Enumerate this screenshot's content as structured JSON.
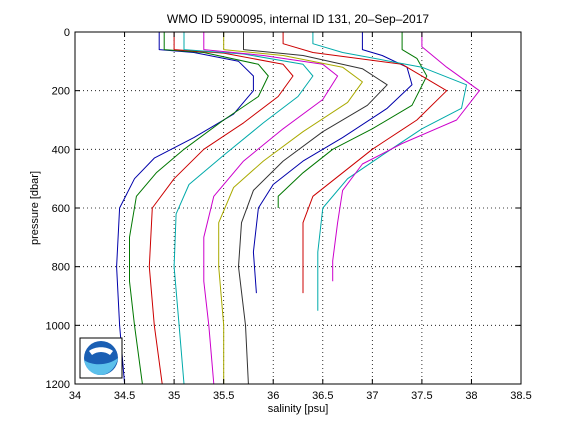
{
  "chart_data": {
    "type": "line",
    "title": "WMO ID 5900095, internal ID 131, 20–Sep–2017",
    "xlabel": "salinity [psu]",
    "ylabel": "pressure [dbar]",
    "xlim": [
      34,
      38.5
    ],
    "ylim": [
      0,
      1200
    ],
    "y_reversed": true,
    "grid": "dotted",
    "legend": "none",
    "x_ticks": [
      "34",
      "34.5",
      "35",
      "35.5",
      "36",
      "36.5",
      "37",
      "37.5",
      "38",
      "38.5"
    ],
    "y_ticks": [
      "0",
      "200",
      "400",
      "600",
      "800",
      "1000",
      "1200"
    ],
    "series": [
      {
        "color": "#0000aa",
        "points": [
          [
            34.85,
            0
          ],
          [
            34.85,
            60
          ],
          [
            35.2,
            70
          ],
          [
            35.65,
            100
          ],
          [
            35.8,
            150
          ],
          [
            35.8,
            200
          ],
          [
            35.6,
            280
          ],
          [
            35.2,
            360
          ],
          [
            34.8,
            430
          ],
          [
            34.6,
            500
          ],
          [
            34.45,
            600
          ],
          [
            34.42,
            800
          ],
          [
            34.45,
            1000
          ],
          [
            34.5,
            1200
          ]
        ]
      },
      {
        "color": "#007700",
        "points": [
          [
            34.9,
            0
          ],
          [
            34.9,
            60
          ],
          [
            35.3,
            70
          ],
          [
            35.85,
            110
          ],
          [
            35.95,
            150
          ],
          [
            35.85,
            220
          ],
          [
            35.5,
            300
          ],
          [
            35.1,
            400
          ],
          [
            34.82,
            480
          ],
          [
            34.62,
            560
          ],
          [
            34.55,
            700
          ],
          [
            34.55,
            850
          ],
          [
            34.6,
            1000
          ],
          [
            34.68,
            1200
          ]
        ]
      },
      {
        "color": "#cc0000",
        "points": [
          [
            35.0,
            0
          ],
          [
            35.0,
            60
          ],
          [
            35.5,
            72
          ],
          [
            36.1,
            110
          ],
          [
            36.2,
            150
          ],
          [
            36.05,
            220
          ],
          [
            35.7,
            310
          ],
          [
            35.3,
            400
          ],
          [
            35.0,
            500
          ],
          [
            34.78,
            600
          ],
          [
            34.75,
            800
          ],
          [
            34.8,
            1000
          ],
          [
            34.88,
            1200
          ]
        ]
      },
      {
        "color": "#00aaaa",
        "points": [
          [
            35.1,
            0
          ],
          [
            35.1,
            60
          ],
          [
            35.7,
            75
          ],
          [
            36.3,
            110
          ],
          [
            36.4,
            150
          ],
          [
            36.25,
            220
          ],
          [
            35.9,
            310
          ],
          [
            35.5,
            420
          ],
          [
            35.15,
            520
          ],
          [
            35.02,
            620
          ],
          [
            35.0,
            800
          ],
          [
            35.05,
            1000
          ],
          [
            35.1,
            1200
          ]
        ]
      },
      {
        "color": "#cc00cc",
        "points": [
          [
            35.3,
            0
          ],
          [
            35.3,
            60
          ],
          [
            35.9,
            80
          ],
          [
            36.5,
            110
          ],
          [
            36.65,
            150
          ],
          [
            36.5,
            230
          ],
          [
            36.1,
            330
          ],
          [
            35.7,
            440
          ],
          [
            35.4,
            560
          ],
          [
            35.3,
            700
          ],
          [
            35.3,
            850
          ],
          [
            35.35,
            1000
          ],
          [
            35.4,
            1200
          ]
        ]
      },
      {
        "color": "#aaaa00",
        "points": [
          [
            35.5,
            0
          ],
          [
            35.5,
            60
          ],
          [
            36.1,
            80
          ],
          [
            36.7,
            120
          ],
          [
            36.9,
            170
          ],
          [
            36.75,
            240
          ],
          [
            36.3,
            340
          ],
          [
            35.9,
            440
          ],
          [
            35.6,
            530
          ],
          [
            35.45,
            650
          ],
          [
            35.45,
            800
          ],
          [
            35.5,
            1000
          ],
          [
            35.5,
            1200
          ]
        ]
      },
      {
        "color": "#333333",
        "points": [
          [
            35.7,
            0
          ],
          [
            35.7,
            60
          ],
          [
            36.3,
            80
          ],
          [
            36.9,
            125
          ],
          [
            37.15,
            180
          ],
          [
            36.95,
            250
          ],
          [
            36.5,
            340
          ],
          [
            36.1,
            440
          ],
          [
            35.8,
            540
          ],
          [
            35.68,
            650
          ],
          [
            35.65,
            800
          ],
          [
            35.72,
            1000
          ],
          [
            35.75,
            1200
          ]
        ]
      },
      {
        "color": "#0000aa",
        "points": [
          [
            36.9,
            0
          ],
          [
            36.9,
            60
          ],
          [
            37.1,
            80
          ],
          [
            37.35,
            120
          ],
          [
            37.4,
            180
          ],
          [
            37.15,
            260
          ],
          [
            36.7,
            360
          ],
          [
            36.3,
            440
          ],
          [
            36.0,
            520
          ],
          [
            35.85,
            600
          ],
          [
            35.8,
            750
          ],
          [
            35.83,
            890
          ]
        ]
      },
      {
        "color": "#007700",
        "points": [
          [
            37.3,
            0
          ],
          [
            37.3,
            60
          ],
          [
            37.45,
            90
          ],
          [
            37.55,
            150
          ],
          [
            37.4,
            250
          ],
          [
            37.0,
            330
          ],
          [
            36.6,
            400
          ],
          [
            36.3,
            480
          ],
          [
            36.05,
            560
          ],
          [
            36.05,
            600
          ]
        ]
      },
      {
        "color": "#cc0000",
        "points": [
          [
            36.1,
            0
          ],
          [
            36.1,
            40
          ],
          [
            36.4,
            70
          ],
          [
            37.3,
            110
          ],
          [
            37.75,
            200
          ],
          [
            37.45,
            300
          ],
          [
            37.0,
            400
          ],
          [
            36.7,
            480
          ],
          [
            36.4,
            560
          ],
          [
            36.3,
            650
          ],
          [
            36.3,
            750
          ],
          [
            36.3,
            890
          ]
        ]
      },
      {
        "color": "#00aaaa",
        "points": [
          [
            36.4,
            0
          ],
          [
            36.4,
            40
          ],
          [
            36.7,
            70
          ],
          [
            37.5,
            120
          ],
          [
            37.95,
            180
          ],
          [
            37.9,
            260
          ],
          [
            37.5,
            330
          ],
          [
            37.1,
            420
          ],
          [
            36.75,
            500
          ],
          [
            36.5,
            600
          ],
          [
            36.45,
            750
          ],
          [
            36.45,
            950
          ]
        ]
      },
      {
        "color": "#cc00cc",
        "points": [
          [
            37.5,
            0
          ],
          [
            37.5,
            50
          ],
          [
            37.75,
            120
          ],
          [
            38.08,
            200
          ],
          [
            37.85,
            300
          ],
          [
            37.3,
            380
          ],
          [
            36.9,
            450
          ],
          [
            36.7,
            540
          ],
          [
            36.65,
            650
          ],
          [
            36.6,
            780
          ],
          [
            36.6,
            850
          ]
        ]
      }
    ]
  }
}
